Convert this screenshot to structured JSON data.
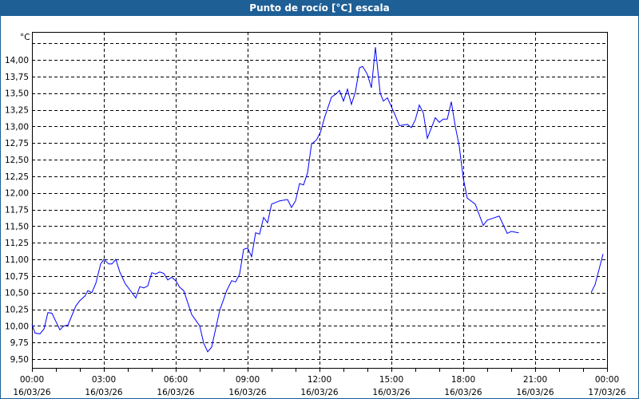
{
  "window": {
    "title": "Punto de rocío [°C] escala"
  },
  "colors": {
    "titlebar": "#1e5f96",
    "line": "#0000ff",
    "grid": "#000000"
  },
  "chart_data": {
    "type": "line",
    "title": "Punto de rocío [°C] escala",
    "ylabel": "°C",
    "xlabel": "",
    "ylim": [
      9.37,
      14.42
    ],
    "xlim": [
      "16/03/26 00:00",
      "17/03/26 00:00"
    ],
    "grid": true,
    "y_ticks": [
      "9,50",
      "9,75",
      "10,00",
      "10,25",
      "10,50",
      "10,75",
      "11,00",
      "11,25",
      "11,50",
      "11,75",
      "12,00",
      "12,25",
      "12,50",
      "12,75",
      "13,00",
      "13,25",
      "13,50",
      "13,75",
      "14,00"
    ],
    "x_ticks": [
      {
        "time": "00:00",
        "date": "16/03/26"
      },
      {
        "time": "03:00",
        "date": "16/03/26"
      },
      {
        "time": "06:00",
        "date": "16/03/26"
      },
      {
        "time": "09:00",
        "date": "16/03/26"
      },
      {
        "time": "12:00",
        "date": "16/03/26"
      },
      {
        "time": "15:00",
        "date": "16/03/26"
      },
      {
        "time": "18:00",
        "date": "16/03/26"
      },
      {
        "time": "21:00",
        "date": "16/03/26"
      },
      {
        "time": "00:00",
        "date": "17/03/26"
      }
    ],
    "series": [
      {
        "segments": [
          [
            [
              "00:00",
              10.02
            ],
            [
              "00:08",
              9.89
            ],
            [
              "00:20",
              9.88
            ],
            [
              "00:30",
              9.95
            ],
            [
              "00:40",
              10.2
            ],
            [
              "00:50",
              10.19
            ],
            [
              "01:10",
              9.94
            ],
            [
              "01:20",
              10.0
            ],
            [
              "01:30",
              10.01
            ],
            [
              "01:50",
              10.3
            ],
            [
              "02:00",
              10.38
            ],
            [
              "02:13",
              10.45
            ],
            [
              "02:20",
              10.53
            ],
            [
              "02:30",
              10.5
            ],
            [
              "02:40",
              10.64
            ],
            [
              "02:52",
              10.93
            ],
            [
              "03:00",
              11.0
            ],
            [
              "03:12",
              10.93
            ],
            [
              "03:20",
              10.93
            ],
            [
              "03:30",
              11.0
            ],
            [
              "03:40",
              10.81
            ],
            [
              "03:53",
              10.64
            ],
            [
              "04:20",
              10.42
            ],
            [
              "04:30",
              10.59
            ],
            [
              "04:40",
              10.57
            ],
            [
              "04:50",
              10.6
            ],
            [
              "05:00",
              10.8
            ],
            [
              "05:10",
              10.78
            ],
            [
              "05:20",
              10.81
            ],
            [
              "05:30",
              10.79
            ],
            [
              "05:40",
              10.69
            ],
            [
              "05:50",
              10.73
            ],
            [
              "06:00",
              10.68
            ],
            [
              "06:10",
              10.58
            ],
            [
              "06:20",
              10.53
            ],
            [
              "06:40",
              10.17
            ],
            [
              "06:53",
              10.06
            ],
            [
              "07:00",
              10.0
            ],
            [
              "07:10",
              9.74
            ],
            [
              "07:20",
              9.61
            ],
            [
              "07:30",
              9.68
            ],
            [
              "07:50",
              10.23
            ],
            [
              "08:07",
              10.52
            ],
            [
              "08:20",
              10.68
            ],
            [
              "08:30",
              10.66
            ],
            [
              "08:40",
              10.78
            ],
            [
              "08:50",
              11.15
            ],
            [
              "09:00",
              11.17
            ],
            [
              "09:10",
              11.04
            ],
            [
              "09:20",
              11.4
            ],
            [
              "09:30",
              11.38
            ],
            [
              "09:40",
              11.63
            ],
            [
              "09:50",
              11.55
            ],
            [
              "10:00",
              11.83
            ],
            [
              "10:20",
              11.88
            ],
            [
              "10:40",
              11.9
            ],
            [
              "10:50",
              11.78
            ],
            [
              "11:00",
              11.88
            ],
            [
              "11:10",
              12.14
            ],
            [
              "11:20",
              12.12
            ],
            [
              "11:30",
              12.3
            ],
            [
              "11:40",
              12.73
            ],
            [
              "11:53",
              12.8
            ],
            [
              "12:03",
              12.92
            ],
            [
              "12:13",
              13.14
            ],
            [
              "12:30",
              13.44
            ],
            [
              "12:40",
              13.48
            ],
            [
              "12:50",
              13.54
            ],
            [
              "13:00",
              13.38
            ],
            [
              "13:10",
              13.56
            ],
            [
              "13:20",
              13.33
            ],
            [
              "13:30",
              13.52
            ],
            [
              "13:40",
              13.88
            ],
            [
              "13:48",
              13.9
            ],
            [
              "14:00",
              13.78
            ],
            [
              "14:10",
              13.58
            ],
            [
              "14:20",
              14.19
            ],
            [
              "14:32",
              13.5
            ],
            [
              "14:40",
              13.38
            ],
            [
              "14:50",
              13.43
            ],
            [
              "15:10",
              13.16
            ],
            [
              "15:20",
              13.01
            ],
            [
              "15:40",
              13.03
            ],
            [
              "15:50",
              12.98
            ],
            [
              "16:00",
              13.1
            ],
            [
              "16:10",
              13.32
            ],
            [
              "16:20",
              13.2
            ],
            [
              "16:30",
              12.82
            ],
            [
              "16:50",
              13.13
            ],
            [
              "17:00",
              13.06
            ],
            [
              "17:10",
              13.11
            ],
            [
              "17:20",
              13.11
            ],
            [
              "17:30",
              13.37
            ],
            [
              "17:40",
              13.0
            ],
            [
              "17:50",
              12.7
            ],
            [
              "18:00",
              12.22
            ],
            [
              "18:10",
              11.92
            ],
            [
              "18:30",
              11.83
            ],
            [
              "18:50",
              11.51
            ],
            [
              "19:00",
              11.59
            ],
            [
              "19:10",
              11.61
            ],
            [
              "19:30",
              11.65
            ],
            [
              "19:50",
              11.39
            ],
            [
              "20:00",
              11.42
            ],
            [
              "20:19",
              11.4
            ]
          ],
          [
            [
              "23:20",
              10.5
            ],
            [
              "23:30",
              10.62
            ],
            [
              "23:50",
              11.08
            ]
          ]
        ]
      }
    ]
  }
}
